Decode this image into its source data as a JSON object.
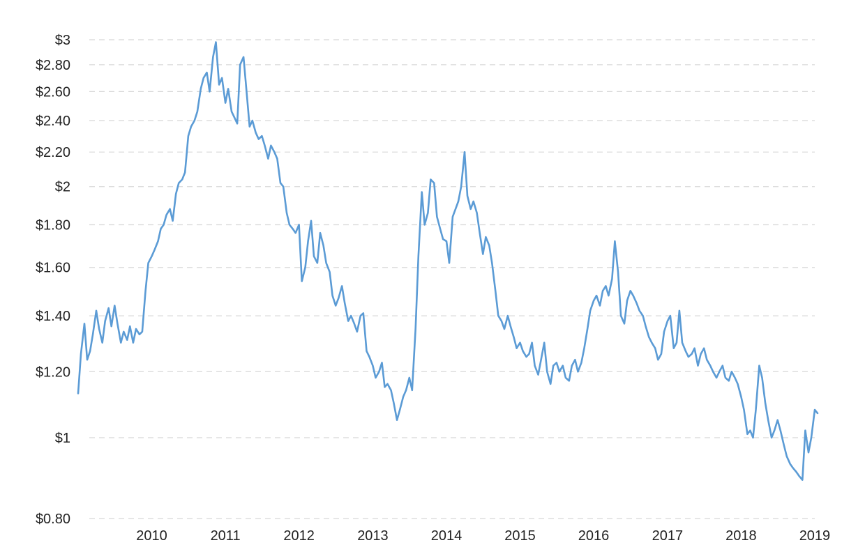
{
  "chart_data": {
    "type": "line",
    "title": "",
    "xlabel": "",
    "ylabel": "",
    "y_scale": "log",
    "ylim": [
      0.8,
      3.0
    ],
    "xlim": [
      "2009-01-01",
      "2019-01-15"
    ],
    "grid": true,
    "line_color": "#5b9bd5",
    "y_ticks": [
      {
        "value": 3.0,
        "label": "$3"
      },
      {
        "value": 2.8,
        "label": "$2.80"
      },
      {
        "value": 2.6,
        "label": "$2.60"
      },
      {
        "value": 2.4,
        "label": "$2.40"
      },
      {
        "value": 2.2,
        "label": "$2.20"
      },
      {
        "value": 2.0,
        "label": "$2"
      },
      {
        "value": 1.8,
        "label": "$1.80"
      },
      {
        "value": 1.6,
        "label": "$1.60"
      },
      {
        "value": 1.4,
        "label": "$1.40"
      },
      {
        "value": 1.2,
        "label": "$1.20"
      },
      {
        "value": 1.0,
        "label": "$1"
      },
      {
        "value": 0.8,
        "label": "$0.80"
      }
    ],
    "x_ticks": [
      {
        "value": "2010-01-01",
        "label": "2010"
      },
      {
        "value": "2011-01-01",
        "label": "2011"
      },
      {
        "value": "2012-01-01",
        "label": "2012"
      },
      {
        "value": "2013-01-01",
        "label": "2013"
      },
      {
        "value": "2014-01-01",
        "label": "2014"
      },
      {
        "value": "2015-01-01",
        "label": "2015"
      },
      {
        "value": "2016-01-01",
        "label": "2016"
      },
      {
        "value": "2017-01-01",
        "label": "2017"
      },
      {
        "value": "2018-01-01",
        "label": "2018"
      },
      {
        "value": "2019-01-01",
        "label": "2019"
      }
    ],
    "series": [
      {
        "x": [
          "2009-01-01",
          "2009-01-15",
          "2009-02-01",
          "2009-02-15",
          "2009-03-01",
          "2009-03-15",
          "2009-04-01",
          "2009-04-15",
          "2009-05-01",
          "2009-05-15",
          "2009-06-01",
          "2009-06-15",
          "2009-07-01",
          "2009-07-15",
          "2009-08-01",
          "2009-08-15",
          "2009-09-01",
          "2009-09-15",
          "2009-10-01",
          "2009-10-15",
          "2009-11-01",
          "2009-11-15",
          "2009-12-01",
          "2009-12-15",
          "2010-01-01",
          "2010-01-15",
          "2010-02-01",
          "2010-02-15",
          "2010-03-01",
          "2010-03-15",
          "2010-04-01",
          "2010-04-15",
          "2010-05-01",
          "2010-05-15",
          "2010-06-01",
          "2010-06-15",
          "2010-07-01",
          "2010-07-15",
          "2010-08-01",
          "2010-08-15",
          "2010-09-01",
          "2010-09-15",
          "2010-10-01",
          "2010-10-15",
          "2010-11-01",
          "2010-11-15",
          "2010-12-01",
          "2010-12-15",
          "2011-01-01",
          "2011-01-15",
          "2011-02-01",
          "2011-02-15",
          "2011-03-01",
          "2011-03-15",
          "2011-04-01",
          "2011-04-15",
          "2011-05-01",
          "2011-05-15",
          "2011-06-01",
          "2011-06-15",
          "2011-07-01",
          "2011-07-15",
          "2011-08-01",
          "2011-08-15",
          "2011-09-01",
          "2011-09-15",
          "2011-10-01",
          "2011-10-15",
          "2011-11-01",
          "2011-11-15",
          "2011-12-01",
          "2011-12-15",
          "2012-01-01",
          "2012-01-15",
          "2012-02-01",
          "2012-02-15",
          "2012-03-01",
          "2012-03-15",
          "2012-04-01",
          "2012-04-15",
          "2012-05-01",
          "2012-05-15",
          "2012-06-01",
          "2012-06-15",
          "2012-07-01",
          "2012-07-15",
          "2012-08-01",
          "2012-08-15",
          "2012-09-01",
          "2012-09-15",
          "2012-10-01",
          "2012-10-15",
          "2012-11-01",
          "2012-11-15",
          "2012-12-01",
          "2012-12-15",
          "2013-01-01",
          "2013-01-15",
          "2013-02-01",
          "2013-02-15",
          "2013-03-01",
          "2013-03-15",
          "2013-04-01",
          "2013-04-15",
          "2013-05-01",
          "2013-05-15",
          "2013-06-01",
          "2013-06-15",
          "2013-07-01",
          "2013-07-15",
          "2013-08-01",
          "2013-08-15",
          "2013-09-01",
          "2013-09-15",
          "2013-10-01",
          "2013-10-15",
          "2013-11-01",
          "2013-11-15",
          "2013-12-01",
          "2013-12-15",
          "2014-01-01",
          "2014-01-15",
          "2014-02-01",
          "2014-02-15",
          "2014-03-01",
          "2014-03-15",
          "2014-04-01",
          "2014-04-15",
          "2014-05-01",
          "2014-05-15",
          "2014-06-01",
          "2014-06-15",
          "2014-07-01",
          "2014-07-15",
          "2014-08-01",
          "2014-08-15",
          "2014-09-01",
          "2014-09-15",
          "2014-10-01",
          "2014-10-15",
          "2014-11-01",
          "2014-11-15",
          "2014-12-01",
          "2014-12-15",
          "2015-01-01",
          "2015-01-15",
          "2015-02-01",
          "2015-02-15",
          "2015-03-01",
          "2015-03-15",
          "2015-04-01",
          "2015-04-15",
          "2015-05-01",
          "2015-05-15",
          "2015-06-01",
          "2015-06-15",
          "2015-07-01",
          "2015-07-15",
          "2015-08-01",
          "2015-08-15",
          "2015-09-01",
          "2015-09-15",
          "2015-10-01",
          "2015-10-15",
          "2015-11-01",
          "2015-11-15",
          "2015-12-01",
          "2015-12-15",
          "2016-01-01",
          "2016-01-15",
          "2016-02-01",
          "2016-02-15",
          "2016-03-01",
          "2016-03-15",
          "2016-04-01",
          "2016-04-15",
          "2016-05-01",
          "2016-05-15",
          "2016-06-01",
          "2016-06-15",
          "2016-07-01",
          "2016-07-15",
          "2016-08-01",
          "2016-08-15",
          "2016-09-01",
          "2016-09-15",
          "2016-10-01",
          "2016-10-15",
          "2016-11-01",
          "2016-11-15",
          "2016-12-01",
          "2016-12-15",
          "2017-01-01",
          "2017-01-15",
          "2017-02-01",
          "2017-02-15",
          "2017-03-01",
          "2017-03-15",
          "2017-04-01",
          "2017-04-15",
          "2017-05-01",
          "2017-05-15",
          "2017-06-01",
          "2017-06-15",
          "2017-07-01",
          "2017-07-15",
          "2017-08-01",
          "2017-08-15",
          "2017-09-01",
          "2017-09-15",
          "2017-10-01",
          "2017-10-15",
          "2017-11-01",
          "2017-11-15",
          "2017-12-01",
          "2017-12-15",
          "2018-01-01",
          "2018-01-15",
          "2018-02-01",
          "2018-02-15",
          "2018-03-01",
          "2018-03-15",
          "2018-04-01",
          "2018-04-15",
          "2018-05-01",
          "2018-05-15",
          "2018-06-01",
          "2018-06-15",
          "2018-07-01",
          "2018-07-15",
          "2018-08-01",
          "2018-08-15",
          "2018-09-01",
          "2018-09-15",
          "2018-10-01",
          "2018-10-15",
          "2018-11-01",
          "2018-11-15",
          "2018-12-01",
          "2018-12-15",
          "2019-01-01",
          "2019-01-15"
        ],
        "y": [
          1.13,
          1.26,
          1.37,
          1.24,
          1.27,
          1.33,
          1.42,
          1.35,
          1.3,
          1.38,
          1.43,
          1.36,
          1.44,
          1.37,
          1.3,
          1.34,
          1.31,
          1.36,
          1.3,
          1.35,
          1.33,
          1.34,
          1.5,
          1.62,
          1.65,
          1.68,
          1.72,
          1.78,
          1.8,
          1.85,
          1.88,
          1.82,
          1.96,
          2.02,
          2.04,
          2.08,
          2.3,
          2.36,
          2.4,
          2.46,
          2.62,
          2.7,
          2.74,
          2.6,
          2.86,
          2.98,
          2.65,
          2.7,
          2.52,
          2.62,
          2.46,
          2.42,
          2.38,
          2.8,
          2.86,
          2.62,
          2.36,
          2.4,
          2.32,
          2.28,
          2.3,
          2.24,
          2.16,
          2.24,
          2.2,
          2.16,
          2.02,
          2.0,
          1.86,
          1.8,
          1.78,
          1.76,
          1.8,
          1.54,
          1.6,
          1.72,
          1.82,
          1.65,
          1.62,
          1.76,
          1.7,
          1.62,
          1.58,
          1.48,
          1.44,
          1.47,
          1.52,
          1.45,
          1.38,
          1.4,
          1.37,
          1.34,
          1.4,
          1.41,
          1.27,
          1.25,
          1.22,
          1.18,
          1.2,
          1.23,
          1.15,
          1.16,
          1.14,
          1.1,
          1.05,
          1.08,
          1.12,
          1.14,
          1.18,
          1.14,
          1.35,
          1.65,
          1.97,
          1.8,
          1.86,
          2.04,
          2.02,
          1.84,
          1.78,
          1.73,
          1.72,
          1.62,
          1.84,
          1.88,
          1.92,
          2.0,
          2.2,
          1.95,
          1.88,
          1.92,
          1.86,
          1.76,
          1.66,
          1.74,
          1.7,
          1.62,
          1.5,
          1.4,
          1.38,
          1.35,
          1.4,
          1.36,
          1.32,
          1.28,
          1.3,
          1.27,
          1.25,
          1.26,
          1.3,
          1.22,
          1.19,
          1.24,
          1.3,
          1.2,
          1.16,
          1.22,
          1.23,
          1.2,
          1.22,
          1.18,
          1.17,
          1.22,
          1.24,
          1.2,
          1.23,
          1.28,
          1.35,
          1.42,
          1.46,
          1.48,
          1.44,
          1.5,
          1.52,
          1.48,
          1.55,
          1.72,
          1.58,
          1.4,
          1.37,
          1.46,
          1.5,
          1.48,
          1.45,
          1.42,
          1.4,
          1.36,
          1.32,
          1.3,
          1.28,
          1.24,
          1.26,
          1.34,
          1.38,
          1.4,
          1.28,
          1.3,
          1.42,
          1.3,
          1.27,
          1.25,
          1.26,
          1.28,
          1.22,
          1.26,
          1.28,
          1.24,
          1.22,
          1.2,
          1.18,
          1.2,
          1.22,
          1.18,
          1.17,
          1.2,
          1.18,
          1.16,
          1.12,
          1.08,
          1.01,
          1.02,
          1.0,
          1.08,
          1.22,
          1.18,
          1.1,
          1.05,
          1.0,
          1.02,
          1.05,
          1.02,
          0.98,
          0.95,
          0.93,
          0.92,
          0.91,
          0.9,
          0.89,
          1.02,
          0.96,
          1.0,
          1.08,
          1.07
        ]
      }
    ]
  }
}
